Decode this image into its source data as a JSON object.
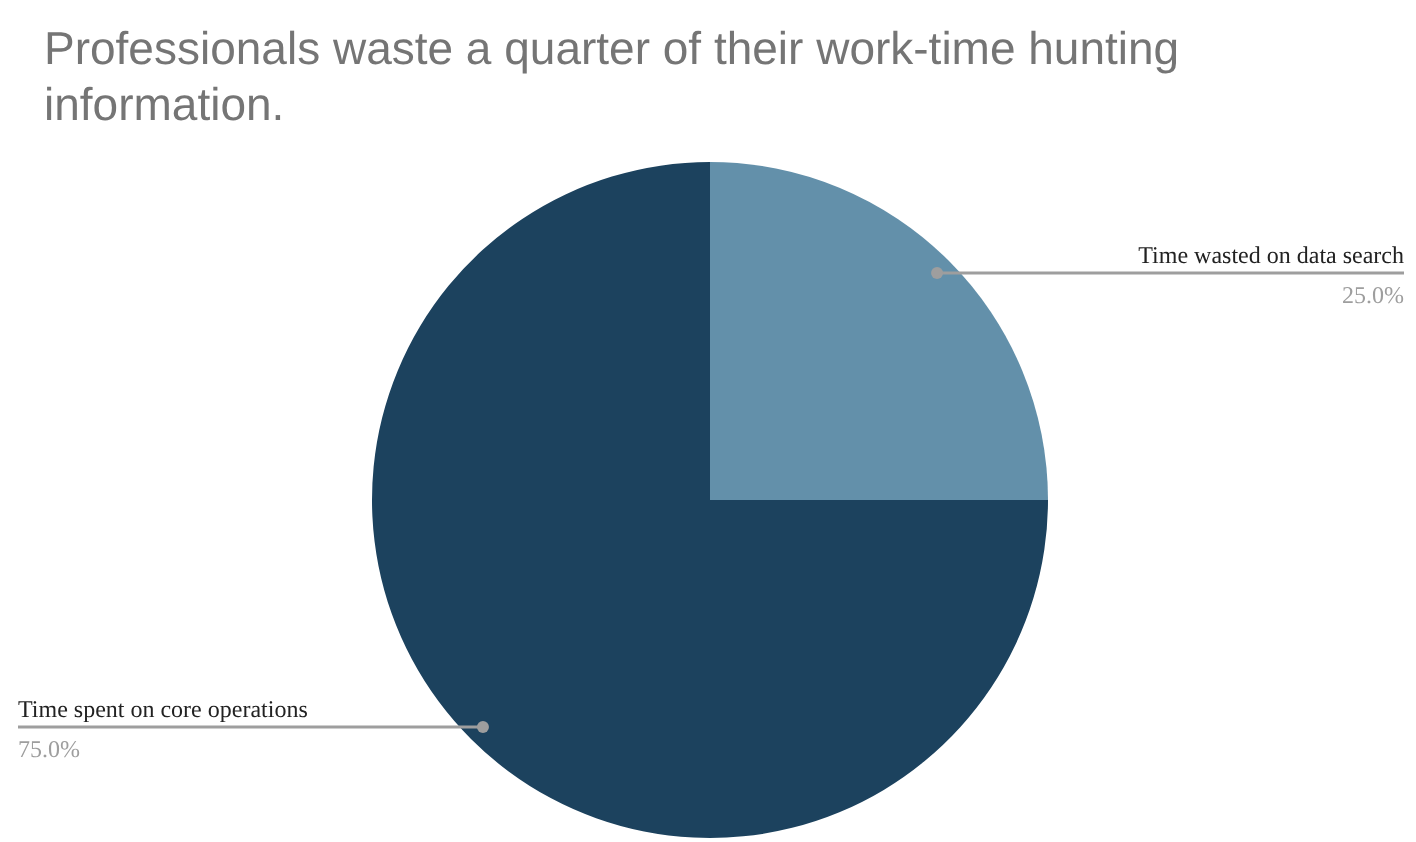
{
  "chart_data": {
    "type": "pie",
    "title": "Professionals waste a quarter of their work-time hunting information.",
    "categories": [
      "Time wasted on data search",
      "Time spent on core operations"
    ],
    "values": [
      25,
      75
    ],
    "colors": [
      "#6390aa",
      "#1c425e"
    ],
    "value_labels": [
      "25.0%",
      "75.0%"
    ]
  }
}
